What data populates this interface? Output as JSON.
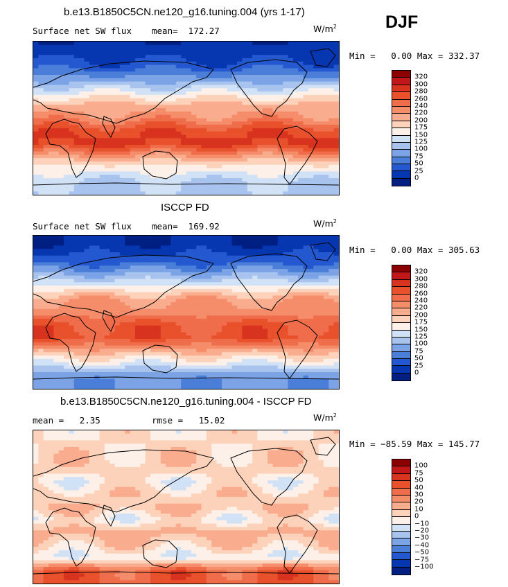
{
  "season": "DJF",
  "unit_base": "W/m",
  "unit_exp": "2",
  "colorbar_abs": {
    "labels": [
      "320",
      "300",
      "280",
      "260",
      "240",
      "220",
      "200",
      "175",
      "150",
      "125",
      "100",
      "75",
      "50",
      "25",
      "0"
    ],
    "colors": [
      "#8b0000",
      "#c1171b",
      "#d8331e",
      "#e8512b",
      "#ef6d4a",
      "#f58d6b",
      "#f9ad8e",
      "#fdd2ba",
      "#fdf0e8",
      "#d1e2f6",
      "#a8c4ee",
      "#7ba3e6",
      "#4a7ed8",
      "#2458d1",
      "#0737b0",
      "#001f83"
    ]
  },
  "colorbar_diff": {
    "labels": [
      "100",
      "75",
      "50",
      "40",
      "30",
      "20",
      "10",
      "0",
      "−10",
      "−20",
      "−30",
      "−40",
      "−50",
      "−75",
      "−100"
    ],
    "colors": [
      "#8b0000",
      "#c1171b",
      "#d8331e",
      "#e8512b",
      "#ef6d4a",
      "#f58d6b",
      "#f9ad8e",
      "#fdd2ba",
      "#fdf0e8",
      "#d1e2f6",
      "#a8c4ee",
      "#7ba3e6",
      "#4a7ed8",
      "#2458d1",
      "#0737b0",
      "#001f83"
    ]
  },
  "panels": [
    {
      "title": "b.e13.B1850C5CN.ne120_g16.tuning.004 (yrs 1-17)",
      "left_text": "Surface net SW flux",
      "right_text": "mean=  172.27",
      "min_max": "Min =   0.00 Max = 332.37"
    },
    {
      "title": "ISCCP FD",
      "left_text": "Surface net SW flux",
      "right_text": "mean=  169.92",
      "min_max": "Min =   0.00 Max = 305.63"
    },
    {
      "title": "b.e13.B1850C5CN.ne120_g16.tuning.004 - ISCCP FD",
      "left_text": "mean =   2.35",
      "right_text": "rmse =   15.02",
      "min_max": "Min = −85.59 Max = 145.77"
    }
  ],
  "chart_data": [
    {
      "type": "heatmap",
      "title": "b.e13.B1850C5CN.ne120_g16.tuning.004 (yrs 1-17)",
      "subtitle": "Surface net SW flux",
      "mean": 172.27,
      "min": 0.0,
      "max": 332.37,
      "unit": "W/m2",
      "colorbar_levels": [
        0,
        25,
        50,
        75,
        100,
        125,
        150,
        175,
        200,
        220,
        240,
        260,
        280,
        300,
        320
      ],
      "zonal_structure": [
        {
          "lat": 80,
          "value": 5
        },
        {
          "lat": 60,
          "value": 40
        },
        {
          "lat": 45,
          "value": 90
        },
        {
          "lat": 30,
          "value": 150
        },
        {
          "lat": 15,
          "value": 210
        },
        {
          "lat": 0,
          "value": 230
        },
        {
          "lat": -15,
          "value": 275
        },
        {
          "lat": -30,
          "value": 285
        },
        {
          "lat": -45,
          "value": 220
        },
        {
          "lat": -60,
          "value": 160
        },
        {
          "lat": -75,
          "value": 120
        }
      ]
    },
    {
      "type": "heatmap",
      "title": "ISCCP FD",
      "subtitle": "Surface net SW flux",
      "mean": 169.92,
      "min": 0.0,
      "max": 305.63,
      "unit": "W/m2",
      "colorbar_levels": [
        0,
        25,
        50,
        75,
        100,
        125,
        150,
        175,
        200,
        220,
        240,
        260,
        280,
        300,
        320
      ],
      "zonal_structure": [
        {
          "lat": 80,
          "value": 5
        },
        {
          "lat": 60,
          "value": 40
        },
        {
          "lat": 45,
          "value": 95
        },
        {
          "lat": 30,
          "value": 160
        },
        {
          "lat": 15,
          "value": 220
        },
        {
          "lat": 0,
          "value": 230
        },
        {
          "lat": -15,
          "value": 265
        },
        {
          "lat": -30,
          "value": 270
        },
        {
          "lat": -45,
          "value": 210
        },
        {
          "lat": -60,
          "value": 150
        },
        {
          "lat": -75,
          "value": 80
        }
      ]
    },
    {
      "type": "heatmap",
      "title": "b.e13.B1850C5CN.ne120_g16.tuning.004 - ISCCP FD",
      "mean": 2.35,
      "rmse": 15.02,
      "min": -85.59,
      "max": 145.77,
      "unit": "W/m2",
      "colorbar_levels": [
        -100,
        -75,
        -50,
        -40,
        -30,
        -20,
        -10,
        0,
        10,
        20,
        30,
        40,
        50,
        75,
        100
      ],
      "zonal_structure": [
        {
          "lat": 80,
          "value": 0
        },
        {
          "lat": 60,
          "value": 5
        },
        {
          "lat": 45,
          "value": 5
        },
        {
          "lat": 30,
          "value": -5
        },
        {
          "lat": 15,
          "value": 5
        },
        {
          "lat": 0,
          "value": 10
        },
        {
          "lat": -15,
          "value": -5
        },
        {
          "lat": -30,
          "value": 15
        },
        {
          "lat": -45,
          "value": 5
        },
        {
          "lat": -60,
          "value": -10
        },
        {
          "lat": -75,
          "value": 40
        }
      ]
    }
  ]
}
